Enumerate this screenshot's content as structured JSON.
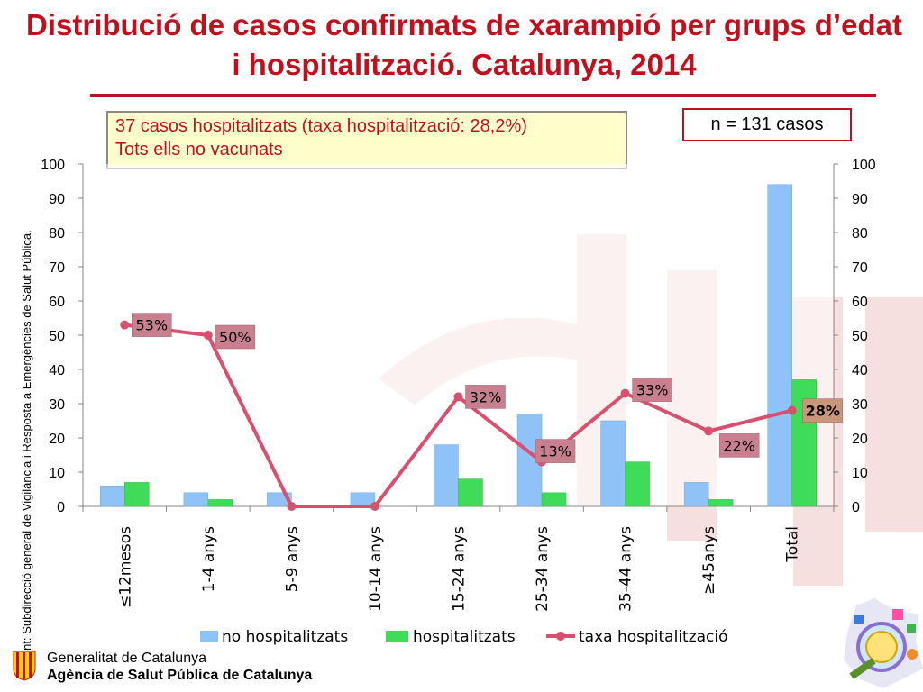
{
  "title": "Distribució de casos confirmats de xarampió  per grups d’edat i hospitalització. Catalunya, 2014",
  "note": {
    "line1": "37 casos hospitalitzats (taxa hospitalització: 28,2%)",
    "line2": "Tots ells no vacunats"
  },
  "n_cases": "n = 131 casos",
  "source": "Font: Subdirecció general de Vigilància i Resposta a Emergències de Salut Pública.",
  "footer": {
    "org1": "Generalitat de Catalunya",
    "org2": "Agència de Salut Pública de Catalunya"
  },
  "colors": {
    "title": "#c0101e",
    "no_hosp": "#8fc3f7",
    "hosp": "#3fdc5a",
    "rate_line": "#d94f6e",
    "label_box": "#c9808e"
  },
  "chart_data": {
    "type": "bar",
    "categories": [
      "≤12mesos",
      "1-4 anys",
      "5-9 anys",
      "10-14 anys",
      "15-24 anys",
      "25-34 anys",
      "35-44 anys",
      "≥45anys",
      "Total"
    ],
    "series": [
      {
        "name": "no hospitalitzats",
        "type": "bar",
        "values": [
          6,
          4,
          4,
          4,
          18,
          27,
          25,
          7,
          94
        ]
      },
      {
        "name": "hospitalitzats",
        "type": "bar",
        "values": [
          7,
          2,
          0,
          0,
          8,
          4,
          13,
          2,
          37
        ]
      },
      {
        "name": "taxa hospitalització",
        "type": "line",
        "axis": "right",
        "values": [
          53,
          50,
          0,
          0,
          32,
          13,
          33,
          22,
          28
        ]
      }
    ],
    "data_labels": [
      "53%",
      "50%",
      "",
      "",
      "32%",
      "13%",
      "33%",
      "22%",
      "28%"
    ],
    "ylim": [
      0,
      100
    ],
    "y2lim": [
      0,
      100
    ],
    "yticks": [
      0,
      10,
      20,
      30,
      40,
      50,
      60,
      70,
      80,
      90,
      100
    ],
    "legend_position": "bottom",
    "grid": false
  }
}
